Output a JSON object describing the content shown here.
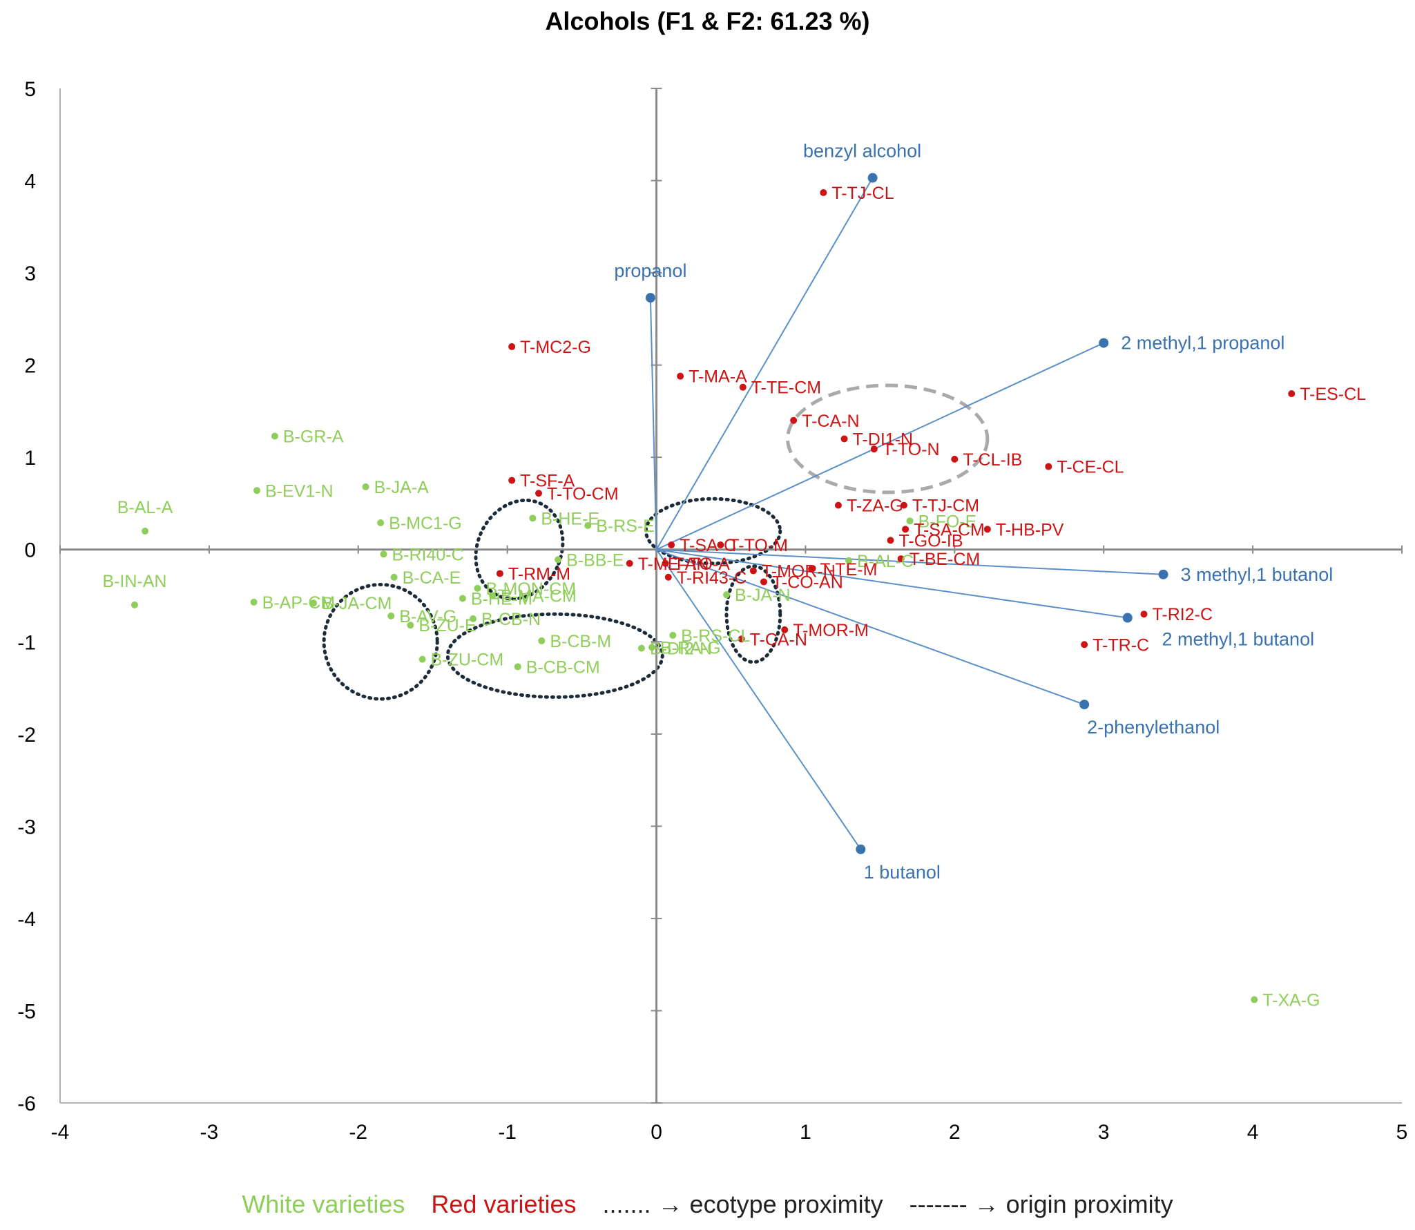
{
  "chart_data": {
    "type": "scatter",
    "title": "Alcohols (F1 & F2: 61.23 %)",
    "xlim": [
      -4,
      5
    ],
    "ylim": [
      -6,
      5
    ],
    "x_ticks": [
      "-4",
      "-3",
      "-2",
      "-1",
      "0",
      "1",
      "2",
      "3",
      "4",
      "5"
    ],
    "y_ticks": [
      "-6",
      "-5",
      "-4",
      "-3",
      "-2",
      "-1",
      "0",
      "1",
      "2",
      "3",
      "4",
      "5"
    ],
    "colors": {
      "white": "#8fce5a",
      "red": "#cc1414",
      "variables": "#3a72b0",
      "ellipse": "#1b2b3a",
      "origin": "#aaaaaa"
    },
    "series": [
      {
        "name": "White varieties",
        "points": [
          {
            "label": "B-GR-A",
            "x": -2.56,
            "y": 1.23
          },
          {
            "label": "B-EV1-N",
            "x": -2.68,
            "y": 0.64
          },
          {
            "label": "B-JA-A",
            "x": -1.95,
            "y": 0.68
          },
          {
            "label": "B-AL-A",
            "x": -3.43,
            "y": 0.2
          },
          {
            "label": "B-MC1-G",
            "x": -1.85,
            "y": 0.29
          },
          {
            "label": "B-IN-AN",
            "x": -3.5,
            "y": -0.6
          },
          {
            "label": "B-JA-CM",
            "x": -2.3,
            "y": -0.58
          },
          {
            "label": "B-AP-CM",
            "x": -2.7,
            "y": -0.57
          },
          {
            "label": "B-RI40-C",
            "x": -1.83,
            "y": -0.05
          },
          {
            "label": "B-CA-E",
            "x": -1.76,
            "y": -0.3
          },
          {
            "label": "B-AV-G",
            "x": -1.78,
            "y": -0.72
          },
          {
            "label": "B-ZU-E",
            "x": -1.65,
            "y": -0.82
          },
          {
            "label": "B-ZU-CM",
            "x": -1.57,
            "y": -1.19
          },
          {
            "label": "B-HE-E",
            "x": -0.83,
            "y": 0.34
          },
          {
            "label": "B-RS-E",
            "x": -0.46,
            "y": 0.26
          },
          {
            "label": "B-BB-E",
            "x": -0.66,
            "y": -0.11
          },
          {
            "label": "B-MON-CM",
            "x": -1.2,
            "y": -0.42
          },
          {
            "label": "B-HE-M",
            "x": -1.3,
            "y": -0.53
          },
          {
            "label": "B-MA-CM",
            "x": -1.1,
            "y": -0.5
          },
          {
            "label": "B-CB-N",
            "x": -1.23,
            "y": -0.75
          },
          {
            "label": "B-CB-M",
            "x": -0.77,
            "y": -0.99
          },
          {
            "label": "B-CB-CM",
            "x": -0.93,
            "y": -1.27
          },
          {
            "label": "B-DI2-N",
            "x": -0.1,
            "y": -1.07
          },
          {
            "label": "B-RA-G",
            "x": -0.03,
            "y": -1.06
          },
          {
            "label": "B-RS-CL",
            "x": 0.11,
            "y": -0.93
          },
          {
            "label": "B-JA-N",
            "x": 0.47,
            "y": -0.49
          },
          {
            "label": "B-FO-E",
            "x": 1.7,
            "y": 0.31
          },
          {
            "label": "B-AL-C",
            "x": 1.29,
            "y": -0.12
          },
          {
            "label": "T-XA-G",
            "x": 4.01,
            "y": -4.88
          }
        ]
      },
      {
        "name": "Red varieties",
        "points": [
          {
            "label": "T-TJ-CL",
            "x": 1.12,
            "y": 3.87
          },
          {
            "label": "T-MC2-G",
            "x": -0.97,
            "y": 2.2
          },
          {
            "label": "T-MA-A",
            "x": 0.16,
            "y": 1.88
          },
          {
            "label": "T-TE-CM",
            "x": 0.58,
            "y": 1.76
          },
          {
            "label": "T-CA-N",
            "x": 0.92,
            "y": 1.4
          },
          {
            "label": "T-DI1-N",
            "x": 1.26,
            "y": 1.2
          },
          {
            "label": "T-TO-N",
            "x": 1.46,
            "y": 1.09
          },
          {
            "label": "T-CL-IB",
            "x": 2.0,
            "y": 0.98
          },
          {
            "label": "T-CE-CL",
            "x": 2.63,
            "y": 0.9
          },
          {
            "label": "T-ES-CL",
            "x": 4.26,
            "y": 1.69
          },
          {
            "label": "T-SF-A",
            "x": -0.97,
            "y": 0.75
          },
          {
            "label": "T-TO-CM",
            "x": -0.79,
            "y": 0.61
          },
          {
            "label": "T-ZA-G",
            "x": 1.22,
            "y": 0.48
          },
          {
            "label": "T-TJ-CM",
            "x": 1.66,
            "y": 0.48
          },
          {
            "label": "T-SA-C",
            "x": 0.1,
            "y": 0.05
          },
          {
            "label": "T-TO-M",
            "x": 0.43,
            "y": 0.05
          },
          {
            "label": "T-ME-AN",
            "x": -0.18,
            "y": -0.15
          },
          {
            "label": "T-RM-M",
            "x": -1.05,
            "y": -0.26
          },
          {
            "label": "T-TO-A",
            "x": 0.06,
            "y": -0.15
          },
          {
            "label": "T-MOR-N",
            "x": 0.65,
            "y": -0.23
          },
          {
            "label": "T-TE-M",
            "x": 1.04,
            "y": -0.21
          },
          {
            "label": "T-HB-PV",
            "x": 2.22,
            "y": 0.22
          },
          {
            "label": "T-SA-CM",
            "x": 1.67,
            "y": 0.22
          },
          {
            "label": "T-GO-IB",
            "x": 1.57,
            "y": 0.1
          },
          {
            "label": "T-BE-CM",
            "x": 1.64,
            "y": -0.1
          },
          {
            "label": "T-RI43-C",
            "x": 0.08,
            "y": -0.3
          },
          {
            "label": "T-CO-AN",
            "x": 0.72,
            "y": -0.35
          },
          {
            "label": "T-MOR-M",
            "x": 0.86,
            "y": -0.87
          },
          {
            "label": "T-CA-N",
            "x": 0.57,
            "y": -0.97
          },
          {
            "label": "T-RI2-C",
            "x": 3.27,
            "y": -0.7
          },
          {
            "label": "T-TR-C",
            "x": 2.87,
            "y": -1.03
          }
        ]
      },
      {
        "name": "Variables",
        "points": [
          {
            "label": "benzyl alcohol",
            "x": 1.45,
            "y": 4.03
          },
          {
            "label": "propanol",
            "x": -0.04,
            "y": 2.73
          },
          {
            "label": "2 methyl,1 propanol",
            "x": 3.0,
            "y": 2.24
          },
          {
            "label": "3 methyl,1 butanol",
            "x": 3.4,
            "y": -0.27
          },
          {
            "label": "2 methyl,1 butanol",
            "x": 3.16,
            "y": -0.74
          },
          {
            "label": "2-phenylethanol",
            "x": 2.87,
            "y": -1.68
          },
          {
            "label": "1 butanol",
            "x": 1.37,
            "y": -3.25
          }
        ]
      }
    ],
    "legend": {
      "white": "White varieties",
      "red": "Red varieties",
      "ecotype": "....... → ecotype proximity",
      "origin": "------- → origin proximity"
    }
  }
}
